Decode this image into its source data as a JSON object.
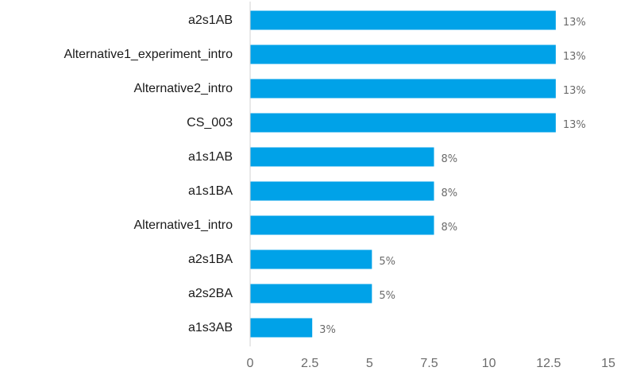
{
  "chart_data": {
    "type": "bar",
    "orientation": "horizontal",
    "categories": [
      "a2s1AB",
      "Alternative1_experiment_intro",
      "Alternative2_intro",
      "CS_003",
      "a1s1AB",
      "a1s1BA",
      "Alternative1_intro",
      "a2s1BA",
      "a2s2BA",
      "a1s3AB"
    ],
    "values": [
      12.8,
      12.8,
      12.8,
      12.8,
      7.7,
      7.7,
      7.7,
      5.1,
      5.1,
      2.6
    ],
    "data_labels": [
      "13%",
      "13%",
      "13%",
      "13%",
      "8%",
      "8%",
      "8%",
      "5%",
      "5%",
      "3%"
    ],
    "xlim": [
      0,
      15
    ],
    "x_ticks": [
      "0",
      "2.5",
      "5",
      "7.5",
      "10",
      "12.5",
      "15"
    ],
    "x_tick_values": [
      0,
      2.5,
      5,
      7.5,
      10,
      12.5,
      15
    ],
    "grid": false,
    "bar_color": "#00a2e8",
    "axis_color": "#d0d0d0"
  }
}
